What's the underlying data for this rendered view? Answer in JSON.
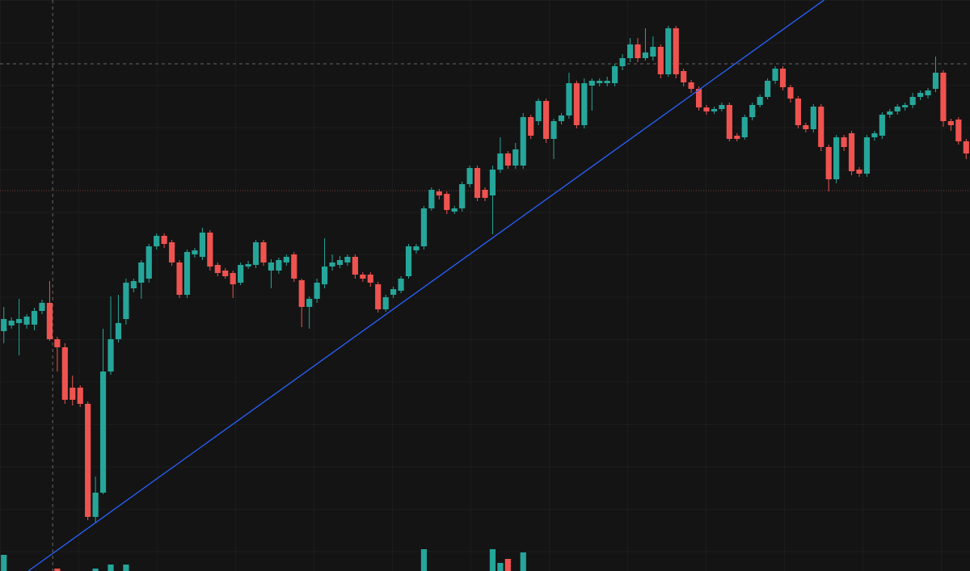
{
  "chart_data": {
    "type": "candlestick",
    "up_color": "#26a69a",
    "down_color": "#ef5350",
    "ylim": [
      0,
      707
    ],
    "open": [
      297,
      304,
      307,
      305,
      305,
      322,
      332,
      287,
      277,
      227,
      227,
      207,
      67,
      97,
      247,
      287,
      312,
      350,
      357,
      362,
      402,
      415,
      407,
      382,
      342,
      392,
      389,
      419,
      379,
      372,
      369,
      357,
      377,
      379,
      407,
      372,
      372,
      382,
      392,
      360,
      327,
      337,
      355,
      377,
      379,
      382,
      389,
      367,
      367,
      355,
      324,
      342,
      347,
      365,
      397,
      402,
      449,
      470,
      467,
      445,
      449,
      479,
      499,
      472,
      465,
      497,
      517,
      502,
      502,
      562,
      557,
      582,
      535,
      557,
      564,
      604,
      552,
      601,
      604,
      604,
      604,
      625,
      635,
      652,
      635,
      637,
      649,
      615,
      672,
      619,
      605,
      597,
      574,
      569,
      572,
      577,
      539,
      537,
      562,
      577,
      587,
      607,
      622,
      599,
      585,
      552,
      547,
      575,
      525,
      485,
      537,
      542,
      497,
      492,
      537,
      539,
      565,
      569,
      574,
      577,
      587,
      589,
      597,
      617,
      557,
      559,
      532
    ],
    "high": [
      327,
      314,
      337,
      318,
      326,
      336,
      359,
      290,
      282,
      242,
      230,
      210,
      117,
      300,
      340,
      342,
      362,
      362,
      385,
      405,
      418,
      418,
      410,
      385,
      398,
      400,
      425,
      422,
      382,
      375,
      372,
      382,
      384,
      410,
      410,
      386,
      388,
      392,
      395,
      362,
      340,
      362,
      412,
      392,
      390,
      392,
      392,
      370,
      370,
      358,
      342,
      352,
      365,
      405,
      405,
      452,
      475,
      473,
      470,
      452,
      482,
      502,
      502,
      475,
      502,
      537,
      520,
      530,
      567,
      565,
      585,
      585,
      560,
      567,
      617,
      607,
      610,
      610,
      610,
      612,
      628,
      640,
      660,
      660,
      672,
      662,
      652,
      675,
      675,
      622,
      608,
      600,
      577,
      575,
      580,
      580,
      542,
      565,
      580,
      590,
      610,
      625,
      625,
      602,
      588,
      555,
      578,
      578,
      528,
      540,
      540,
      545,
      500,
      540,
      545,
      568,
      572,
      578,
      580,
      592,
      595,
      598,
      637,
      620,
      560,
      562,
      535
    ],
    "low": [
      282,
      300,
      267,
      300,
      298,
      318,
      285,
      247,
      207,
      205,
      203,
      63,
      60,
      95,
      243,
      283,
      305,
      345,
      337,
      357,
      398,
      400,
      378,
      338,
      338,
      388,
      385,
      372,
      365,
      362,
      338,
      354,
      374,
      375,
      378,
      350,
      368,
      378,
      358,
      302,
      300,
      332,
      350,
      372,
      375,
      378,
      362,
      358,
      352,
      320,
      321,
      338,
      344,
      362,
      393,
      398,
      446,
      460,
      442,
      442,
      445,
      475,
      458,
      458,
      417,
      493,
      498,
      498,
      498,
      535,
      552,
      530,
      510,
      553,
      560,
      548,
      548,
      570,
      600,
      600,
      600,
      620,
      630,
      630,
      632,
      632,
      610,
      612,
      610,
      600,
      592,
      570,
      565,
      566,
      569,
      532,
      532,
      534,
      558,
      574,
      584,
      603,
      595,
      580,
      548,
      543,
      543,
      520,
      470,
      480,
      520,
      490,
      488,
      488,
      533,
      535,
      561,
      565,
      570,
      573,
      583,
      585,
      593,
      550,
      545,
      528,
      510
    ],
    "close": [
      312,
      310,
      312,
      315,
      322,
      332,
      287,
      277,
      212,
      212,
      207,
      67,
      97,
      247,
      287,
      307,
      357,
      359,
      382,
      402,
      415,
      405,
      382,
      342,
      395,
      397,
      419,
      377,
      369,
      365,
      355,
      379,
      380,
      407,
      382,
      382,
      385,
      389,
      362,
      327,
      337,
      357,
      377,
      382,
      385,
      389,
      367,
      362,
      357,
      324,
      339,
      349,
      362,
      402,
      402,
      449,
      472,
      465,
      447,
      449,
      479,
      499,
      462,
      462,
      497,
      517,
      502,
      522,
      562,
      539,
      582,
      535,
      557,
      564,
      604,
      552,
      604,
      607,
      607,
      607,
      625,
      635,
      652,
      635,
      642,
      649,
      615,
      672,
      615,
      605,
      597,
      574,
      569,
      572,
      577,
      535,
      535,
      562,
      577,
      587,
      607,
      622,
      599,
      585,
      552,
      547,
      575,
      525,
      485,
      537,
      525,
      495,
      492,
      537,
      542,
      565,
      569,
      575,
      577,
      587,
      592,
      595,
      617,
      557,
      552,
      532,
      517
    ],
    "volume": [
      20,
      null,
      null,
      null,
      null,
      null,
      null,
      3,
      null,
      null,
      null,
      null,
      3,
      null,
      8,
      null,
      8,
      null,
      null,
      null,
      null,
      null,
      null,
      null,
      null,
      null,
      null,
      null,
      null,
      null,
      null,
      null,
      null,
      null,
      null,
      null,
      null,
      null,
      null,
      null,
      null,
      null,
      null,
      null,
      null,
      null,
      null,
      null,
      null,
      null,
      null,
      null,
      null,
      null,
      null,
      27,
      null,
      null,
      null,
      null,
      null,
      null,
      null,
      null,
      27,
      10,
      15,
      null,
      23,
      null,
      null,
      null,
      null,
      null,
      null,
      null,
      null,
      null,
      null,
      null,
      null,
      null,
      null,
      null,
      null,
      null,
      null,
      null,
      null,
      null,
      null,
      null,
      null,
      null,
      null,
      null,
      null,
      null,
      null,
      null,
      null,
      null,
      null,
      null,
      null,
      null,
      null,
      null,
      null,
      null,
      null,
      null,
      null,
      null,
      null,
      null,
      null,
      null,
      null,
      null,
      null,
      null,
      null,
      null,
      null,
      null,
      null
    ],
    "trendline": {
      "start": [
        3.2,
        0
      ],
      "end": [
        107.4,
        707
      ],
      "color": "#2962ff"
    },
    "price_lines": [
      {
        "value": 471,
        "color": "#7a3a3a"
      }
    ],
    "crosshair": {
      "index": 6.4,
      "value": 628,
      "color": "#8a8a8a"
    }
  }
}
